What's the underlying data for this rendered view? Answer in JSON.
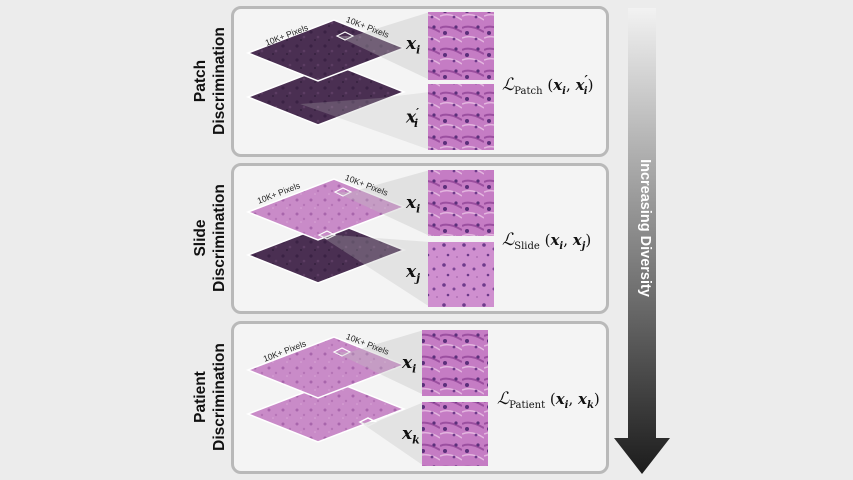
{
  "rows": [
    {
      "label_line1": "Patch",
      "label_line2": "Discrimination",
      "pixels_left": "10K+ Pixels",
      "pixels_right": "10K+ Pixels",
      "var_top": "x",
      "var_top_sub": "i",
      "var_top_sup": "",
      "var_bottom": "x",
      "var_bottom_sub": "i",
      "var_bottom_sup": "′",
      "loss_symbol": "ℒ",
      "loss_sub": "Patch",
      "loss_arg1": "x",
      "loss_arg1_sub": "i",
      "loss_arg2": "x",
      "loss_arg2_sub": "i",
      "loss_arg2_sup": "′"
    },
    {
      "label_line1": "Slide",
      "label_line2": "Discrimination",
      "pixels_left": "10K+ Pixels",
      "pixels_right": "10K+ Pixels",
      "var_top": "x",
      "var_top_sub": "i",
      "var_top_sup": "",
      "var_bottom": "x",
      "var_bottom_sub": "j",
      "var_bottom_sup": "",
      "loss_symbol": "ℒ",
      "loss_sub": "Slide",
      "loss_arg1": "x",
      "loss_arg1_sub": "i",
      "loss_arg2": "x",
      "loss_arg2_sub": "j",
      "loss_arg2_sup": ""
    },
    {
      "label_line1": "Patient",
      "label_line2": "Discrimination",
      "pixels_left": "10K+ Pixels",
      "pixels_right": "10K+ Pixels",
      "var_top": "x",
      "var_top_sub": "i",
      "var_top_sup": "",
      "var_bottom": "x",
      "var_bottom_sub": "k",
      "var_bottom_sup": "",
      "loss_symbol": "ℒ",
      "loss_sub": "Patient",
      "loss_arg1": "x",
      "loss_arg1_sub": "i",
      "loss_arg2": "x",
      "loss_arg2_sub": "k",
      "loss_arg2_sup": ""
    }
  ],
  "arrow_label": "Increasing Diversity",
  "colors": {
    "dark_slide": "#4a2f52",
    "pink_slide": "#c98bc8",
    "panel_border": "#b9b9b9",
    "arrow_top": "#f2f2f2",
    "arrow_bottom": "#1c1c1c"
  }
}
